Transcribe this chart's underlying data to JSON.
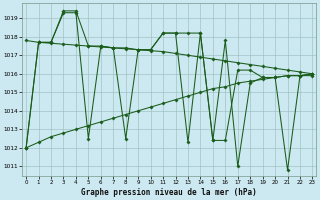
{
  "xlabel": "Graphe pression niveau de la mer (hPa)",
  "bg_color": "#cce8f0",
  "grid_color": "#99bbbb",
  "line_color": "#1a5c1a",
  "xlim": [
    -0.3,
    23.3
  ],
  "ylim": [
    1010.5,
    1019.8
  ],
  "yticks": [
    1011,
    1012,
    1013,
    1014,
    1015,
    1016,
    1017,
    1018,
    1019
  ],
  "xticks": [
    0,
    1,
    2,
    3,
    4,
    5,
    6,
    7,
    8,
    9,
    10,
    11,
    12,
    13,
    14,
    15,
    16,
    17,
    18,
    19,
    20,
    21,
    22,
    23
  ],
  "s1": [
    1012.0,
    1017.7,
    1017.7,
    1019.3,
    1019.3,
    1012.5,
    1017.5,
    1017.4,
    1012.5,
    1017.3,
    1017.3,
    1018.2,
    1018.2,
    1012.3,
    1018.2,
    1012.4,
    1017.8,
    1011.0,
    1015.5,
    1015.8,
    1015.8,
    1010.8,
    1015.9,
    1015.9
  ],
  "s2": [
    1012.0,
    1017.7,
    1017.7,
    1019.4,
    1019.4,
    1017.5,
    1017.5,
    1017.4,
    1017.4,
    1017.3,
    1017.3,
    1018.2,
    1018.2,
    1018.2,
    1018.2,
    1012.4,
    1012.4,
    1016.2,
    1016.2,
    1015.8,
    1015.8,
    1015.9,
    1015.9,
    1016.0
  ],
  "s3": [
    1017.8,
    1017.7,
    1017.65,
    1017.6,
    1017.55,
    1017.5,
    1017.45,
    1017.4,
    1017.35,
    1017.3,
    1017.25,
    1017.2,
    1017.1,
    1017.0,
    1016.9,
    1016.8,
    1016.7,
    1016.6,
    1016.5,
    1016.4,
    1016.3,
    1016.2,
    1016.1,
    1016.0
  ],
  "s4": [
    1012.0,
    1012.3,
    1012.6,
    1012.8,
    1013.0,
    1013.2,
    1013.4,
    1013.6,
    1013.8,
    1014.0,
    1014.2,
    1014.4,
    1014.6,
    1014.8,
    1015.0,
    1015.2,
    1015.3,
    1015.5,
    1015.6,
    1015.7,
    1015.8,
    1015.9,
    1015.9,
    1016.0
  ]
}
